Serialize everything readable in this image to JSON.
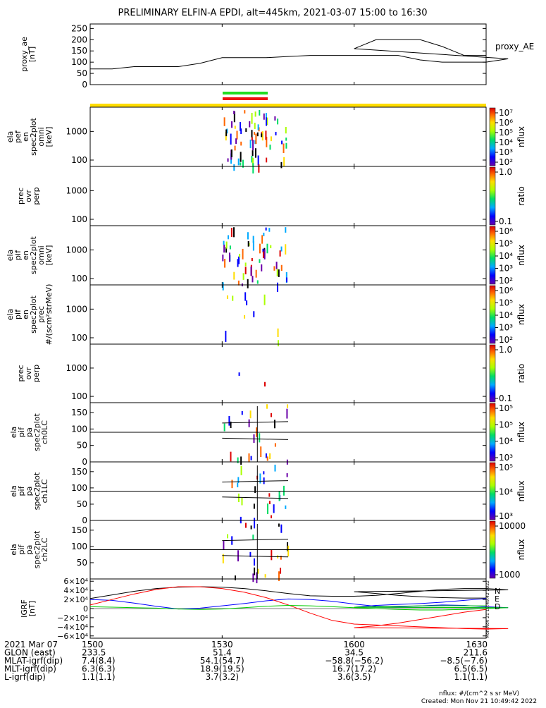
{
  "title": "PRELIMINARY ELFIN-A EPDI, alt=445km, 2021-03-07 15:00 to 16:30",
  "colors": {
    "axis": "#000000",
    "trace": "#000000",
    "bar_green": "#22dd22",
    "bar_red": "#ee1111",
    "bar_yellow": "#ffdd00",
    "N": "#000000",
    "E": "#0000ff",
    "D": "#ff0000",
    "Eg": "#00cc00"
  },
  "chart_data": [
    {
      "type": "line",
      "panel": "proxy_ae",
      "ylabel_lines": [
        "proxy_ae",
        "[nT]"
      ],
      "legend": "proxy_AE",
      "ylim": [
        0,
        270
      ],
      "yticks": [
        0,
        50,
        100,
        150,
        200,
        250
      ],
      "x": [
        1500,
        1505,
        1510,
        1515,
        1520,
        1525,
        1530,
        1535,
        1540,
        1545,
        1550,
        1555,
        1560,
        1565,
        1570,
        1575,
        1580,
        1585,
        1590,
        1595,
        1600,
        1605,
        1610,
        1615,
        1620,
        1625,
        1630
      ],
      "values": [
        70,
        70,
        80,
        80,
        80,
        95,
        120,
        120,
        120,
        125,
        130,
        130,
        130,
        130,
        130,
        110,
        100,
        100,
        100,
        115,
        160,
        200,
        200,
        200,
        170,
        130,
        130
      ]
    },
    {
      "type": "heatmap",
      "panel": "elfin_perp_omni",
      "ylabel_lines": [
        "ela",
        "pef",
        "en",
        "spec2plot",
        "omni",
        "[keV]"
      ],
      "ylog": true,
      "ylim": [
        60,
        7000
      ],
      "yticks": [
        100,
        1000
      ],
      "colorbar": {
        "scale": "log",
        "label": "nflux",
        "ticks": [
          "10⁷",
          "10⁶",
          "10⁵",
          "10⁴",
          "10³",
          "10²"
        ]
      }
    },
    {
      "type": "heatmap",
      "panel": "prec_ovr_perp_1",
      "ylabel_lines": [
        "prec",
        "ovr",
        "perp"
      ],
      "ylog": true,
      "ylim": [
        60,
        7000
      ],
      "yticks": [
        100,
        1000
      ],
      "colorbar": {
        "scale": "log",
        "label": "ratio",
        "ticks": [
          "1.0",
          "0.1"
        ]
      }
    },
    {
      "type": "heatmap",
      "panel": "pif_omni",
      "ylabel_lines": [
        "ela",
        "pif",
        "en",
        "spec2plot",
        "omni",
        "[keV]"
      ],
      "ylog": true,
      "ylim": [
        60,
        7000
      ],
      "yticks": [
        100,
        1000
      ],
      "colorbar": {
        "scale": "log",
        "label": "nflux",
        "ticks": [
          "10⁶",
          "10⁵",
          "10⁴",
          "10³",
          "10²"
        ]
      }
    },
    {
      "type": "heatmap",
      "panel": "pif_prec",
      "ylabel_lines": [
        "ela",
        "pif",
        "en",
        "spec2plot",
        "prec",
        "#/(scm²strMeV)"
      ],
      "ylog": true,
      "ylim": [
        60,
        7000
      ],
      "yticks": [
        100,
        1000
      ],
      "colorbar": {
        "scale": "log",
        "label": "nflux",
        "ticks": [
          "10⁶",
          "10⁵",
          "10⁴",
          "10³",
          "10²"
        ]
      }
    },
    {
      "type": "heatmap",
      "panel": "prec_ovr_perp_2",
      "ylabel_lines": [
        "prec",
        "ovr",
        "perp"
      ],
      "ylog": true,
      "ylim": [
        60,
        7000
      ],
      "yticks": [
        100,
        1000
      ],
      "colorbar": {
        "scale": "log",
        "label": "ratio",
        "ticks": [
          "1.0",
          "0.1"
        ]
      }
    },
    {
      "type": "heatmap",
      "panel": "pa_ch0",
      "ylabel_lines": [
        "ela",
        "pif",
        "pa",
        "spec2plot",
        "ch0LC"
      ],
      "ylim": [
        0,
        180
      ],
      "yticks": [
        0,
        50,
        100,
        150
      ],
      "colorbar": {
        "scale": "log",
        "label": "nflux",
        "ticks": [
          "10⁵",
          "10⁵",
          "10⁴",
          "10³"
        ]
      }
    },
    {
      "type": "heatmap",
      "panel": "pa_ch1",
      "ylabel_lines": [
        "ela",
        "pif",
        "pa",
        "spec2plot",
        "ch1LC"
      ],
      "ylim": [
        0,
        180
      ],
      "yticks": [
        0,
        50,
        100,
        150
      ],
      "colorbar": {
        "scale": "log",
        "label": "nflux",
        "ticks": [
          "10⁵",
          "10⁴",
          "10³"
        ]
      }
    },
    {
      "type": "heatmap",
      "panel": "pa_ch2",
      "ylabel_lines": [
        "ela",
        "pif",
        "pa",
        "spec2plot",
        "ch2LC"
      ],
      "ylim": [
        0,
        180
      ],
      "yticks": [
        50,
        100,
        150
      ],
      "colorbar": {
        "scale": "log",
        "label": "nflux",
        "ticks": [
          "10000",
          "1000"
        ]
      }
    },
    {
      "type": "line",
      "panel": "igrf",
      "ylabel_lines": [
        "IGRF",
        "[nT]"
      ],
      "ylim": [
        -65000,
        65000
      ],
      "yticks": [
        "6×10⁴",
        "4×10⁴",
        "2×10⁴",
        "0",
        "−2×10⁴",
        "−4×10⁴",
        "−6×10⁴"
      ],
      "ytick_values": [
        60000,
        40000,
        20000,
        0,
        -20000,
        -40000,
        -60000
      ],
      "x": [
        1500,
        1505,
        1510,
        1515,
        1520,
        1525,
        1530,
        1535,
        1540,
        1545,
        1550,
        1555,
        1560,
        1565,
        1570,
        1575,
        1580,
        1585,
        1590,
        1595,
        1600,
        1605,
        1610,
        1615,
        1620,
        1625,
        1630
      ],
      "series": [
        {
          "name": "N",
          "values": [
            22000,
            30000,
            38000,
            44000,
            47000,
            48000,
            47000,
            44000,
            39000,
            33000,
            28000,
            27000,
            27000,
            29000,
            33000,
            38000,
            42000,
            44000,
            44000,
            41000,
            37000,
            33000,
            29000,
            26000,
            24000,
            23000,
            23000
          ]
        },
        {
          "name": "E",
          "values": [
            20000,
            18000,
            12000,
            5000,
            -1000,
            1000,
            6000,
            11000,
            17000,
            21000,
            20000,
            16000,
            10000,
            5000,
            4000,
            6000,
            8000,
            7000,
            4000,
            2000,
            3000,
            7000,
            9000,
            11000,
            14000,
            18000,
            22000
          ]
        },
        {
          "name": "D",
          "values": [
            8000,
            20000,
            32000,
            42000,
            48000,
            48000,
            44000,
            36000,
            24000,
            8000,
            -10000,
            -26000,
            -34000,
            -36000,
            -38000,
            -40000,
            -42000,
            -44000,
            -45000,
            -44000,
            -42000,
            -38000,
            -32000,
            -24000,
            -16000,
            -8000,
            -2000
          ]
        },
        {
          "name": "E",
          "values": [
            4000,
            3000,
            2000,
            1000,
            -1000,
            -2000,
            -1000,
            2000,
            5000,
            7000,
            6000,
            4000,
            2000,
            0,
            -2000,
            -3000,
            -3000,
            -2000,
            0,
            2000,
            3000,
            4000,
            5000,
            6000,
            6000,
            6000,
            6000
          ]
        }
      ]
    }
  ],
  "x_axis": {
    "ticks": [
      "1500",
      "1530",
      "1600",
      "1630"
    ],
    "values": [
      1500,
      1530,
      1600,
      1630
    ],
    "xlim": [
      1500,
      1630
    ]
  },
  "footer_rows": [
    {
      "label": "2021 Mar 07",
      "values": [
        "1500",
        "1530",
        "1600",
        "1630"
      ]
    },
    {
      "label": "GLON (east)",
      "values": [
        "233.5",
        "51.4",
        "34.5",
        "211.6"
      ]
    },
    {
      "label": "MLAT-igrf(dip)",
      "values": [
        "7.4(8.4)",
        "54.1(54.7)",
        "−58.8(−56.2)",
        "−8.5(−7.6)"
      ]
    },
    {
      "label": "MLT-igrf(dip)",
      "values": [
        "6.3(6.3)",
        "18.9(19.5)",
        "16.7(17.2)",
        "6.5(6.5)"
      ]
    },
    {
      "label": "L-igrf(dip)",
      "values": [
        "1.1(1.1)",
        "3.7(3.2)",
        "3.6(3.5)",
        "1.1(1.1)"
      ]
    }
  ],
  "footnote_units": "nflux: #/(cm^2 s sr MeV)",
  "footnote_created": "Created: Mon Nov 21 10:49:42 2022",
  "side_stamp": "Mon Nov 21 10:49:42 2022",
  "legend_NED": [
    "N",
    "E",
    "D"
  ]
}
